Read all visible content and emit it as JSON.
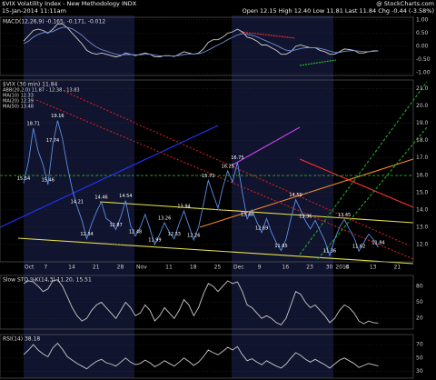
{
  "header": {
    "title": "$VIX Volatility Index - New Methodology INDX",
    "date": "15-Jan-2014 11:11am",
    "quote": "Open 12.15 High 12.40 Low 11.81 Last 11.84 Chg -0.44 (-3.58%)",
    "credit": "@ StockCharts.com"
  },
  "chart_data": [
    {
      "type": "line",
      "title": "$VIX (30 min) 11.84",
      "annotations": [
        "ABB(20,2.0) 11.87 - 12.38 - 13.83",
        "MA(10) 12.33",
        "MA(20) 12.39",
        "MA(50) 13.48"
      ],
      "categories": [
        "Oct",
        null,
        null,
        null,
        "7",
        null,
        null,
        null,
        null,
        "14",
        null,
        null,
        null,
        null,
        "21",
        null,
        null,
        null,
        null,
        "28",
        null,
        null,
        null,
        "Nov",
        null,
        null,
        null,
        null,
        null,
        "11",
        null,
        null,
        null,
        null,
        "18",
        null,
        null,
        null,
        null,
        "25",
        null,
        null,
        null,
        "Dec",
        null,
        null,
        null,
        null,
        "9",
        null,
        null,
        null,
        null,
        "16",
        null,
        null,
        null,
        null,
        "23",
        null,
        null,
        null,
        "30",
        null,
        "2014",
        null,
        "6",
        null,
        null,
        null,
        null,
        "13",
        null,
        null,
        null,
        null,
        "21"
      ],
      "series": [
        {
          "name": "$VIX",
          "color": "#5b8ee6",
          "values": [
            15.54,
            16.8,
            18.71,
            17.4,
            16.6,
            15.46,
            17.74,
            19.16,
            18.1,
            16.5,
            15.2,
            14.21,
            13.4,
            12.34,
            13.2,
            13.9,
            14.46,
            13.5,
            13.3,
            12.87,
            13.6,
            14.54,
            13.1,
            12.48,
            13.0,
            13.74,
            12.9,
            11.99,
            12.6,
            13.26,
            12.7,
            12.33,
            13.2,
            13.94,
            13.1,
            12.26,
            13.0,
            14.3,
            15.71,
            14.9,
            14.1,
            15.3,
            16.25,
            15.6,
            16.75,
            15.0,
            13.48,
            14.0,
            13.3,
            12.69,
            13.5,
            12.7,
            12.1,
            11.65,
            12.3,
            13.5,
            14.59,
            14.0,
            13.36,
            12.9,
            13.4,
            12.8,
            12.2,
            11.36,
            12.3,
            13.0,
            13.45,
            12.9,
            12.4,
            11.62,
            12.1,
            12.6,
            12.28,
            11.84,
            null,
            null,
            null
          ],
          "value_labels": [
            "15.54",
            null,
            "18.71",
            null,
            null,
            "15.46",
            "17.74",
            "19.16",
            null,
            null,
            null,
            "14.21",
            null,
            "12.34",
            null,
            null,
            "14.46",
            null,
            null,
            "12.87",
            null,
            "14.54",
            null,
            "12.48",
            null,
            null,
            null,
            "11.99",
            null,
            "13.26",
            null,
            "12.33",
            null,
            "13.94",
            null,
            "12.26",
            null,
            null,
            "15.71",
            null,
            null,
            null,
            "16.25",
            null,
            "16.75",
            null,
            "13.48",
            null,
            null,
            "12.69",
            null,
            null,
            null,
            "11.65",
            null,
            null,
            "14.59",
            null,
            "13.36",
            null,
            null,
            null,
            null,
            "11.36",
            null,
            null,
            "13.45",
            null,
            null,
            "11.62",
            null,
            null,
            null,
            "11.84",
            null,
            null,
            null
          ]
        }
      ],
      "ylim": [
        11.0,
        21.5
      ],
      "yticks": [
        {
          "value": 12,
          "label": "12.0"
        },
        {
          "value": 13,
          "label": "13.0"
        },
        {
          "value": 14,
          "label": "14.0"
        },
        {
          "value": 15,
          "label": "15.0"
        },
        {
          "value": 16,
          "label": "16.0"
        },
        {
          "value": 17,
          "label": "17.0"
        },
        {
          "value": 18,
          "label": "18.0"
        },
        {
          "value": 19,
          "label": "19.0"
        },
        {
          "value": 20,
          "label": "20.0"
        },
        {
          "value": 21,
          "label": "21.0"
        }
      ],
      "grid": true
    },
    {
      "type": "line",
      "title": "MACD(12,26,9) -0.165, -0.171, -0.012",
      "series": [
        {
          "name": "MACD",
          "color": "#d0d0d0",
          "values": [
            0.2,
            0.4,
            0.6,
            0.65,
            0.6,
            0.5,
            0.65,
            0.85,
            0.85,
            0.7,
            0.5,
            0.3,
            0.1,
            -0.15,
            -0.25,
            -0.3,
            -0.25,
            -0.3,
            -0.35,
            -0.4,
            -0.35,
            -0.25,
            -0.3,
            -0.35,
            -0.3,
            -0.25,
            -0.3,
            -0.4,
            -0.4,
            -0.35,
            -0.35,
            -0.38,
            -0.3,
            -0.2,
            -0.25,
            -0.3,
            -0.25,
            -0.1,
            0.15,
            0.25,
            0.25,
            0.35,
            0.5,
            0.55,
            0.65,
            0.55,
            0.35,
            0.3,
            0.2,
            0.05,
            0.05,
            -0.05,
            -0.15,
            -0.3,
            -0.3,
            -0.2,
            0.0,
            0.05,
            0.0,
            -0.05,
            -0.05,
            -0.15,
            -0.2,
            -0.3,
            -0.3,
            -0.2,
            -0.1,
            -0.12,
            -0.15,
            -0.25,
            -0.25,
            -0.2,
            -0.17,
            -0.165,
            null,
            null,
            null
          ]
        },
        {
          "name": "Signal",
          "color": "#6f8fd8",
          "values": [
            0.1,
            0.2,
            0.35,
            0.45,
            0.52,
            0.53,
            0.56,
            0.65,
            0.72,
            0.72,
            0.66,
            0.55,
            0.42,
            0.25,
            0.1,
            -0.03,
            -0.12,
            -0.18,
            -0.24,
            -0.3,
            -0.33,
            -0.31,
            -0.31,
            -0.32,
            -0.32,
            -0.3,
            -0.3,
            -0.33,
            -0.36,
            -0.36,
            -0.36,
            -0.36,
            -0.35,
            -0.31,
            -0.29,
            -0.29,
            -0.28,
            -0.23,
            -0.14,
            -0.04,
            0.05,
            0.14,
            0.25,
            0.34,
            0.43,
            0.48,
            0.46,
            0.42,
            0.36,
            0.28,
            0.2,
            0.12,
            0.04,
            -0.06,
            -0.14,
            -0.17,
            -0.13,
            -0.08,
            -0.05,
            -0.05,
            -0.05,
            -0.08,
            -0.12,
            -0.18,
            -0.23,
            -0.23,
            -0.19,
            -0.17,
            -0.16,
            -0.18,
            -0.2,
            -0.2,
            -0.19,
            -0.171,
            null,
            null,
            null
          ]
        }
      ],
      "ylim": [
        -1.1,
        1.1
      ],
      "yticks": [
        {
          "value": 1,
          "label": "1.00"
        },
        {
          "value": 0.5,
          "label": "0.50"
        },
        {
          "value": 0,
          "label": "0.00"
        },
        {
          "value": -0.5,
          "label": "-0.50"
        },
        {
          "value": -1,
          "label": "-1.00"
        }
      ],
      "grid": true
    },
    {
      "type": "line",
      "title": "Slow STO %K(14,3) 11.20, 15.51",
      "series": [
        {
          "name": "%K",
          "color": "#c8c8c8",
          "values": [
            85,
            90,
            88,
            80,
            70,
            75,
            90,
            92,
            80,
            60,
            40,
            25,
            15,
            20,
            35,
            45,
            50,
            40,
            30,
            20,
            35,
            50,
            40,
            25,
            30,
            45,
            35,
            15,
            25,
            40,
            30,
            20,
            35,
            55,
            45,
            25,
            40,
            65,
            85,
            80,
            70,
            80,
            90,
            85,
            88,
            70,
            45,
            40,
            30,
            20,
            25,
            20,
            12,
            8,
            20,
            45,
            70,
            65,
            50,
            40,
            45,
            35,
            25,
            12,
            20,
            35,
            45,
            40,
            30,
            15,
            10,
            15,
            12,
            11.2,
            null,
            null,
            null
          ]
        }
      ],
      "ylim": [
        0,
        100
      ],
      "yticks": [
        20,
        50,
        80
      ],
      "grid": true
    },
    {
      "type": "line",
      "title": "RSI(14) 38.18",
      "series": [
        {
          "name": "RSI",
          "color": "#c8c8c8",
          "values": [
            55,
            62,
            70,
            62,
            56,
            52,
            65,
            72,
            63,
            52,
            47,
            42,
            38,
            34,
            40,
            45,
            48,
            43,
            41,
            38,
            44,
            50,
            44,
            40,
            42,
            47,
            43,
            37,
            41,
            46,
            42,
            38,
            44,
            50,
            45,
            39,
            44,
            52,
            62,
            58,
            55,
            60,
            66,
            62,
            67,
            55,
            46,
            49,
            44,
            40,
            46,
            42,
            38,
            35,
            41,
            50,
            58,
            54,
            48,
            44,
            48,
            44,
            40,
            35,
            41,
            47,
            50,
            46,
            42,
            36,
            39,
            42,
            40,
            38.18,
            null,
            null,
            null
          ]
        }
      ],
      "ylim": [
        20,
        85
      ],
      "yticks": [
        30,
        50,
        70
      ],
      "grid": true
    }
  ]
}
